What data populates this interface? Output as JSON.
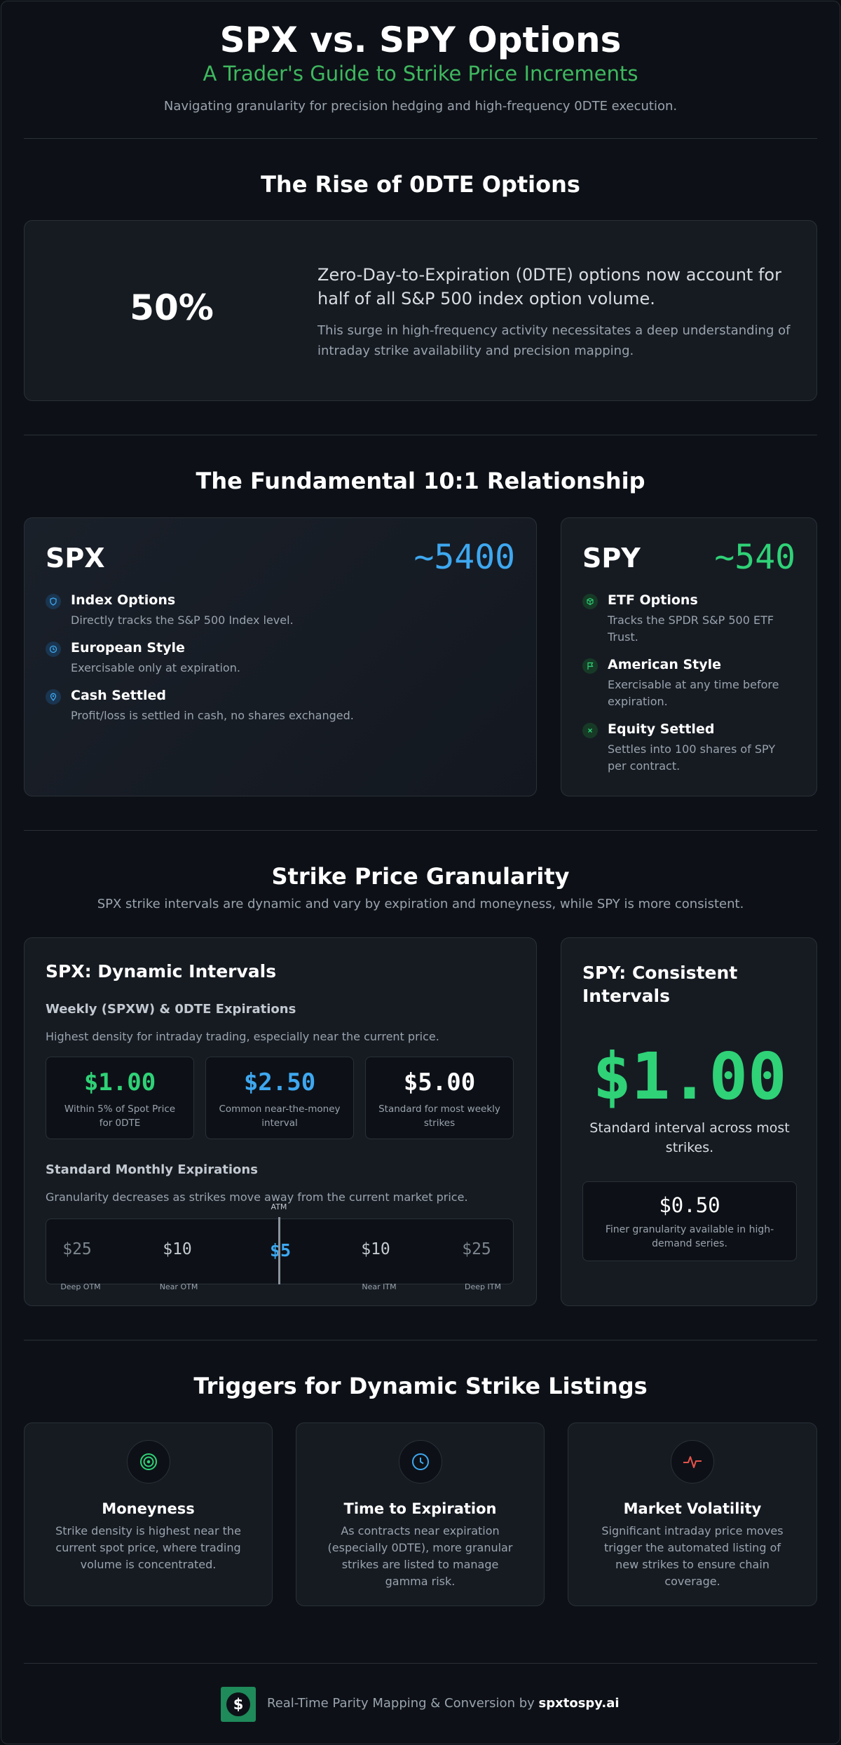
{
  "header": {
    "title": "SPX vs. SPY Options",
    "subtitle": "A Trader's Guide to Strike Price Increments",
    "tagline": "Navigating granularity for precision hedging and high-frequency 0DTE execution."
  },
  "odte": {
    "heading": "The Rise of 0DTE Options",
    "stat": "50%",
    "headline": "Zero-Day-to-Expiration (0DTE) options now account for half of all S&P 500 index option volume.",
    "detail": "This surge in high-frequency activity necessitates a deep understanding of intraday strike availability and precision mapping."
  },
  "relationship": {
    "heading": "The Fundamental 10:1 Relationship",
    "spx": {
      "name": "SPX",
      "level": "~5400",
      "features": [
        {
          "title": "Index Options",
          "desc": "Directly tracks the S&P 500 Index level.",
          "icon": "shield-icon"
        },
        {
          "title": "European Style",
          "desc": "Exercisable only at expiration.",
          "icon": "clock-icon"
        },
        {
          "title": "Cash Settled",
          "desc": "Profit/loss is settled in cash, no shares exchanged.",
          "icon": "location-pin-icon"
        }
      ]
    },
    "spy": {
      "name": "SPY",
      "level": "~540",
      "features": [
        {
          "title": "ETF Options",
          "desc": "Tracks the SPDR S&P 500 ETF Trust.",
          "icon": "cube-icon"
        },
        {
          "title": "American Style",
          "desc": "Exercisable at any time before expiration.",
          "icon": "flag-icon"
        },
        {
          "title": "Equity Settled",
          "desc": "Settles into 100 shares of SPY per contract.",
          "icon": "x-icon"
        }
      ]
    }
  },
  "granularity": {
    "heading": "Strike Price Granularity",
    "sub": "SPX strike intervals are dynamic and vary by expiration and moneyness, while SPY is more consistent.",
    "spx": {
      "title": "SPX: Dynamic Intervals",
      "weekly_title": "Weekly (SPXW) & 0DTE Expirations",
      "weekly_desc": "Highest density for intraday trading, especially near the current price.",
      "intervals": [
        {
          "value": "$1.00",
          "desc": "Within 5% of Spot Price for 0DTE",
          "color": "#2fd277"
        },
        {
          "value": "$2.50",
          "desc": "Common near-the-money interval",
          "color": "#3ea8f0"
        },
        {
          "value": "$5.00",
          "desc": "Standard for most weekly strikes",
          "color": "#ffffff"
        }
      ],
      "monthly_title": "Standard Monthly Expirations",
      "monthly_desc": "Granularity decreases as strikes move away from the current market price.",
      "atm_label": "ATM",
      "ladder": [
        "$25",
        "$10",
        "$5",
        "$10",
        "$25"
      ],
      "ladder_labels": [
        "Deep OTM",
        "Near OTM",
        "Near ITM",
        "Deep ITM"
      ]
    },
    "spy": {
      "title": "SPY: Consistent Intervals",
      "value": "$1.00",
      "desc": "Standard interval across most strikes.",
      "alt_value": "$0.50",
      "alt_desc": "Finer granularity available in high-demand series."
    }
  },
  "triggers": {
    "heading": "Triggers for Dynamic Strike Listings",
    "items": [
      {
        "title": "Moneyness",
        "desc": "Strike density is highest near the current spot price, where trading volume is concentrated.",
        "icon": "target-icon"
      },
      {
        "title": "Time to Expiration",
        "desc": "As contracts near expiration (especially 0DTE), more granular strikes are listed to manage gamma risk.",
        "icon": "clock-icon"
      },
      {
        "title": "Market Volatility",
        "desc": "Significant intraday price moves trigger the automated listing of new strikes to ensure chain coverage.",
        "icon": "pulse-icon"
      }
    ]
  },
  "footer": {
    "text": "Real-Time Parity Mapping & Conversion by",
    "brand": "spxtospy.ai",
    "logo_glyph": "$"
  },
  "colors": {
    "green": "#2fd277",
    "blue": "#3ea8f0",
    "red": "#e5534b",
    "bg": "#0d1117",
    "card": "#161b22"
  }
}
